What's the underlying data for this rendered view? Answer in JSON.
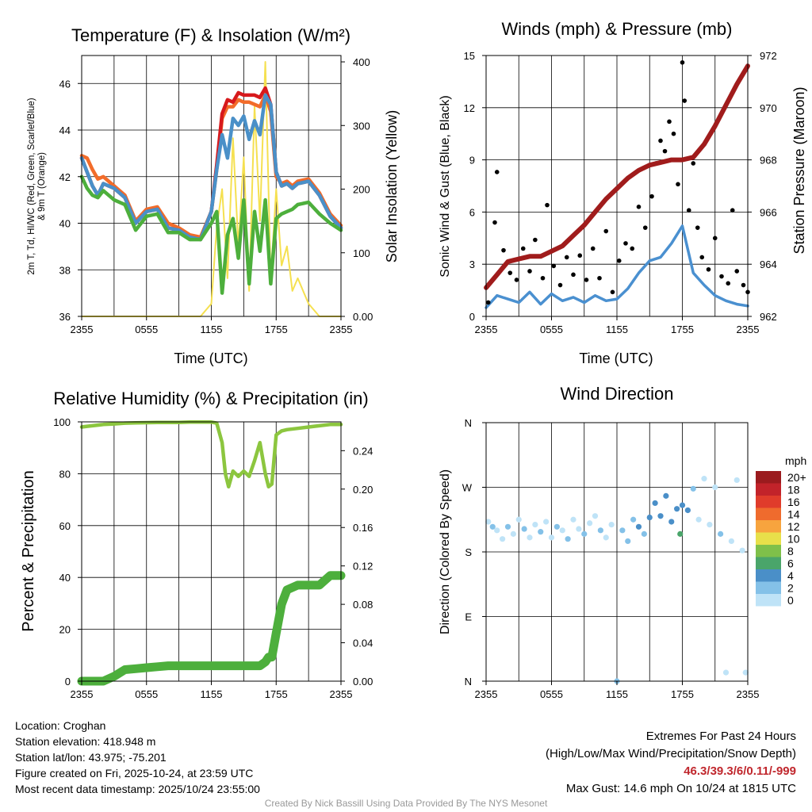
{
  "panel1": {
    "title": "Temperature (F) & Insolation (W/m²)",
    "ylabel_left_line1": "2m T, Td, HI/WC (Red, Green, Scarlet/Blue)",
    "ylabel_left_line2": "& 9m T (Orange)",
    "ylabel_right": "Solar Insolation (Yellow)",
    "xlabel": "Time (UTC)"
  },
  "panel2": {
    "title": "Winds (mph) & Pressure (mb)",
    "ylabel_left": "Sonic Wind & Gust (Blue, Black)",
    "ylabel_right": "Station Pressure (Maroon)",
    "xlabel": "Time (UTC)"
  },
  "panel3": {
    "title": "Relative Humidity (%) & Precipitation (in)",
    "ylabel_left": "Percent & Precipitation"
  },
  "panel4": {
    "title": "Wind Direction",
    "ylabel_left": "Direction (Colored By Speed)",
    "legend_title": "mph"
  },
  "info": {
    "location": "Location: Croghan",
    "elevation": "Station elevation: 418.948 m",
    "latlon": "Station lat/lon: 43.975; -75.201",
    "created": "Figure created on Fri, 2025-10-24, at 23:59 UTC",
    "recent": "Most recent data timestamp: 2025/10/24 23:55:00",
    "extremes_title": "Extremes For Past 24 Hours",
    "extremes_subtitle": "(High/Low/Max Wind/Precipitation/Snow Depth)",
    "extremes_values": "46.3/39.3/6/0.11/-999",
    "max_gust": "Max Gust: 14.6 mph On 10/24 at 1815 UTC",
    "credit": "Created By Nick Bassill Using Data Provided By The NYS Mesonet"
  },
  "colors": {
    "temp": "#d7191c",
    "temp9m": "#f26c2a",
    "dewpoint": "#4daf3c",
    "heatindex": "#4a90c8",
    "solar": "#f5e050",
    "wind": "#4a90d0",
    "gust": "#000000",
    "pressure": "#a01c1c",
    "rh": "#8cc63f",
    "precip": "#4daf3c"
  },
  "chart_data": [
    {
      "type": "line",
      "title": "Temperature (F) & Insolation (W/m²)",
      "xlabel": "Time (UTC)",
      "ylabel": "2m T, Td, HI/WC (Red, Green, Scarlet/Blue) & 9m T (Orange)",
      "y2label": "Solar Insolation (Yellow)",
      "x_ticks": [
        "2355",
        "0555",
        "1155",
        "1755",
        "2355"
      ],
      "y_ticks": [
        36,
        38,
        40,
        42,
        44,
        46
      ],
      "y2_ticks": [
        0,
        100,
        200,
        300,
        400
      ],
      "ylim": [
        36,
        47.2
      ],
      "y2lim": [
        0,
        410
      ],
      "x_hours": [
        0,
        0.5,
        1,
        1.5,
        2,
        3,
        4,
        5,
        6,
        7,
        8,
        9,
        10,
        11,
        12,
        12.5,
        13,
        13.5,
        14,
        14.5,
        15,
        15.5,
        16,
        16.5,
        17,
        17.5,
        18,
        18.5,
        19,
        19.5,
        20,
        21,
        22,
        23,
        24
      ],
      "series": [
        {
          "name": "2m T",
          "color": "red",
          "values": [
            42.8,
            42.2,
            41.6,
            41.2,
            41.7,
            41.5,
            41.1,
            40.0,
            40.5,
            40.6,
            39.8,
            39.7,
            39.4,
            39.3,
            40.5,
            42.5,
            44.7,
            45.3,
            45.2,
            45.6,
            45.5,
            45.5,
            45.5,
            45.4,
            45.8,
            45.1,
            42.2,
            41.6,
            41.7,
            41.5,
            41.7,
            41.8,
            41.2,
            40.3,
            39.8
          ]
        },
        {
          "name": "9m T",
          "color": "orange",
          "values": [
            42.9,
            42.8,
            42.3,
            41.9,
            42.0,
            41.6,
            41.2,
            40.1,
            40.6,
            40.7,
            40.0,
            39.8,
            39.5,
            39.4,
            40.5,
            42.3,
            44.5,
            45.0,
            45.0,
            45.3,
            45.2,
            45.2,
            45.1,
            45.0,
            45.5,
            44.8,
            42.0,
            41.7,
            41.8,
            41.6,
            41.8,
            41.9,
            41.3,
            40.4,
            39.9
          ]
        },
        {
          "name": "Td",
          "color": "green",
          "values": [
            42.0,
            41.5,
            41.2,
            41.1,
            41.4,
            41.0,
            40.8,
            39.7,
            40.3,
            40.4,
            39.6,
            39.6,
            39.3,
            39.3,
            40.0,
            40.5,
            37.0,
            39.5,
            40.2,
            38.5,
            41.0,
            37.4,
            40.5,
            38.8,
            41.0,
            37.4,
            40.2,
            40.4,
            40.5,
            40.6,
            40.8,
            40.9,
            40.4,
            40.0,
            39.7
          ]
        },
        {
          "name": "HI/WC",
          "color": "blue",
          "values": [
            42.8,
            42.2,
            41.6,
            41.2,
            41.7,
            41.5,
            41.1,
            40.0,
            40.5,
            40.6,
            39.8,
            39.7,
            39.4,
            39.3,
            40.5,
            42.3,
            43.8,
            42.8,
            44.5,
            44.2,
            44.6,
            43.6,
            44.4,
            43.8,
            45.5,
            45.1,
            42.2,
            41.6,
            41.7,
            41.5,
            41.7,
            41.8,
            41.2,
            40.3,
            39.8
          ]
        },
        {
          "name": "Solar Insolation",
          "axis": "right",
          "color": "yellow",
          "values": [
            0,
            0,
            0,
            0,
            0,
            0,
            0,
            0,
            0,
            0,
            0,
            0,
            0,
            0,
            20,
            140,
            200,
            60,
            280,
            110,
            250,
            40,
            330,
            150,
            400,
            60,
            200,
            80,
            110,
            40,
            60,
            20,
            0,
            0,
            0
          ]
        }
      ]
    },
    {
      "type": "line",
      "title": "Winds (mph) & Pressure (mb)",
      "xlabel": "Time (UTC)",
      "ylabel": "Sonic Wind & Gust (Blue, Black)",
      "y2label": "Station Pressure (Maroon)",
      "x_ticks": [
        "2355",
        "0555",
        "1155",
        "1755",
        "2355"
      ],
      "y_ticks": [
        0,
        3,
        6,
        9,
        12,
        15
      ],
      "y2_ticks": [
        962,
        964,
        966,
        968,
        970,
        972
      ],
      "ylim": [
        0,
        15
      ],
      "y2lim": [
        962,
        972
      ],
      "x_hours": [
        0,
        1,
        2,
        3,
        4,
        5,
        6,
        7,
        8,
        9,
        10,
        11,
        12,
        13,
        14,
        15,
        16,
        17,
        18,
        19,
        20,
        21,
        22,
        23,
        24
      ],
      "series": [
        {
          "name": "Sonic Wind",
          "color": "blue",
          "values": [
            0.5,
            1.2,
            1.0,
            0.8,
            1.4,
            0.7,
            1.3,
            0.9,
            1.1,
            0.8,
            1.2,
            0.9,
            1.0,
            1.6,
            2.5,
            3.2,
            3.4,
            4.2,
            5.2,
            2.5,
            1.8,
            1.2,
            0.9,
            0.7,
            0.6
          ]
        },
        {
          "name": "Gust",
          "color": "black",
          "points": [
            [
              0.2,
              0.8
            ],
            [
              0.8,
              5.4
            ],
            [
              1.0,
              8.3
            ],
            [
              1.6,
              3.8
            ],
            [
              2.2,
              2.5
            ],
            [
              2.8,
              2.1
            ],
            [
              3.4,
              3.9
            ],
            [
              4.0,
              2.6
            ],
            [
              4.5,
              4.4
            ],
            [
              5.2,
              2.2
            ],
            [
              5.6,
              6.4
            ],
            [
              6.2,
              2.9
            ],
            [
              6.8,
              1.8
            ],
            [
              7.4,
              3.4
            ],
            [
              8.0,
              2.4
            ],
            [
              8.6,
              3.5
            ],
            [
              9.2,
              2.1
            ],
            [
              9.8,
              3.9
            ],
            [
              10.4,
              2.2
            ],
            [
              11.0,
              4.9
            ],
            [
              11.6,
              1.4
            ],
            [
              12.2,
              3.2
            ],
            [
              12.8,
              4.2
            ],
            [
              13.4,
              3.9
            ],
            [
              14.0,
              6.3
            ],
            [
              14.6,
              5.1
            ],
            [
              15.2,
              6.9
            ],
            [
              15.6,
              8.8
            ],
            [
              16.0,
              10.1
            ],
            [
              16.4,
              9.5
            ],
            [
              16.8,
              11.2
            ],
            [
              17.2,
              10.5
            ],
            [
              17.6,
              7.6
            ],
            [
              18.0,
              14.6
            ],
            [
              18.2,
              12.4
            ],
            [
              18.6,
              6.1
            ],
            [
              19.0,
              8.8
            ],
            [
              19.4,
              5.1
            ],
            [
              19.8,
              3.4
            ],
            [
              20.4,
              2.7
            ],
            [
              21.0,
              4.5
            ],
            [
              21.6,
              2.3
            ],
            [
              22.2,
              1.9
            ],
            [
              22.6,
              6.1
            ],
            [
              23.0,
              2.6
            ],
            [
              23.6,
              1.8
            ],
            [
              24.0,
              1.4
            ]
          ]
        },
        {
          "name": "Station Pressure",
          "axis": "right",
          "color": "maroon",
          "values": [
            963.1,
            963.6,
            964.1,
            964.2,
            964.3,
            964.3,
            964.5,
            964.7,
            965.1,
            965.5,
            966.0,
            966.5,
            966.9,
            967.3,
            967.6,
            967.8,
            967.9,
            968.0,
            968.0,
            968.1,
            968.6,
            969.3,
            970.1,
            970.9,
            971.6
          ]
        }
      ]
    },
    {
      "type": "line",
      "title": "Relative Humidity (%) & Precipitation (in)",
      "ylabel": "Percent & Precipitation",
      "x_ticks": [
        "2355",
        "0555",
        "1155",
        "1755",
        "2355"
      ],
      "y_ticks": [
        0,
        20,
        40,
        60,
        80,
        100
      ],
      "y2_ticks": [
        0.0,
        0.04,
        0.08,
        0.12,
        0.16,
        0.2,
        0.24
      ],
      "ylim": [
        0,
        100
      ],
      "y2lim": [
        0,
        0.27
      ],
      "x_hours": [
        0,
        0.5,
        1,
        2,
        3,
        4,
        5,
        6,
        7,
        8,
        9,
        10,
        11,
        12,
        12.5,
        13,
        13.3,
        13.6,
        14,
        14.5,
        15,
        15.5,
        16,
        16.5,
        17,
        17.3,
        17.6,
        18,
        18.5,
        19,
        20,
        21,
        22,
        23,
        24
      ],
      "series": [
        {
          "name": "Relative Humidity",
          "color": "light-green",
          "values": [
            98,
            98.3,
            98.5,
            99,
            99.2,
            99.5,
            99.6,
            99.7,
            99.8,
            99.8,
            99.8,
            99.9,
            99.9,
            99.9,
            99.5,
            92,
            80,
            75,
            81,
            79,
            81,
            79,
            85,
            92,
            80,
            75,
            76,
            95,
            96.5,
            97,
            97.5,
            98,
            98.5,
            99,
            99
          ]
        },
        {
          "name": "Precipitation",
          "axis": "right",
          "color": "green",
          "values": [
            0,
            0,
            0,
            0,
            0.005,
            0.012,
            0.013,
            0.014,
            0.015,
            0.016,
            0.016,
            0.016,
            0.016,
            0.016,
            0.016,
            0.016,
            0.016,
            0.016,
            0.016,
            0.016,
            0.016,
            0.016,
            0.016,
            0.016,
            0.02,
            0.025,
            0.025,
            0.05,
            0.08,
            0.095,
            0.1,
            0.1,
            0.1,
            0.11,
            0.11
          ]
        }
      ]
    },
    {
      "type": "scatter",
      "title": "Wind Direction",
      "ylabel": "Direction (Colored By Speed)",
      "x_ticks": [
        "2355",
        "0555",
        "1155",
        "1755",
        "2355"
      ],
      "y_ticks": [
        "N",
        "E",
        "S",
        "W",
        "N"
      ],
      "ylim": [
        0,
        360
      ],
      "legend": {
        "title": "mph",
        "levels": [
          "0",
          "2",
          "4",
          "6",
          "8",
          "10",
          "12",
          "14",
          "16",
          "18",
          "20+"
        ]
      },
      "points_deg_speed": [
        [
          0.2,
          222,
          1
        ],
        [
          0.6,
          215,
          2
        ],
        [
          1.0,
          210,
          1
        ],
        [
          1.5,
          198,
          1
        ],
        [
          2.0,
          215,
          2
        ],
        [
          2.5,
          205,
          1
        ],
        [
          3.0,
          225,
          1
        ],
        [
          3.5,
          212,
          2
        ],
        [
          4.0,
          200,
          1
        ],
        [
          4.5,
          218,
          1
        ],
        [
          5.0,
          208,
          2
        ],
        [
          5.5,
          222,
          1
        ],
        [
          6.0,
          200,
          1
        ],
        [
          6.5,
          215,
          3
        ],
        [
          7.0,
          210,
          1
        ],
        [
          7.5,
          198,
          2
        ],
        [
          8.0,
          225,
          1
        ],
        [
          8.5,
          212,
          1
        ],
        [
          9.0,
          205,
          2
        ],
        [
          9.5,
          220,
          1
        ],
        [
          10.0,
          230,
          1
        ],
        [
          10.5,
          210,
          2
        ],
        [
          11.0,
          200,
          1
        ],
        [
          11.5,
          218,
          1
        ],
        [
          12.0,
          0,
          2
        ],
        [
          12.5,
          210,
          2
        ],
        [
          13.0,
          195,
          3
        ],
        [
          13.5,
          225,
          2
        ],
        [
          14.0,
          215,
          4
        ],
        [
          14.5,
          205,
          3
        ],
        [
          15.0,
          228,
          4
        ],
        [
          15.5,
          248,
          5
        ],
        [
          16.0,
          230,
          4
        ],
        [
          16.5,
          258,
          4
        ],
        [
          17.0,
          222,
          5
        ],
        [
          17.5,
          240,
          4
        ],
        [
          17.8,
          205,
          6
        ],
        [
          18.0,
          245,
          5
        ],
        [
          18.5,
          238,
          4
        ],
        [
          19.0,
          268,
          2
        ],
        [
          19.5,
          225,
          1
        ],
        [
          20.0,
          282,
          1
        ],
        [
          20.5,
          218,
          1
        ],
        [
          21.0,
          270,
          1
        ],
        [
          21.5,
          205,
          2
        ],
        [
          22.0,
          12,
          1
        ],
        [
          22.5,
          195,
          1
        ],
        [
          23.0,
          280,
          1
        ],
        [
          23.5,
          182,
          1
        ],
        [
          23.8,
          12,
          1
        ]
      ]
    }
  ]
}
